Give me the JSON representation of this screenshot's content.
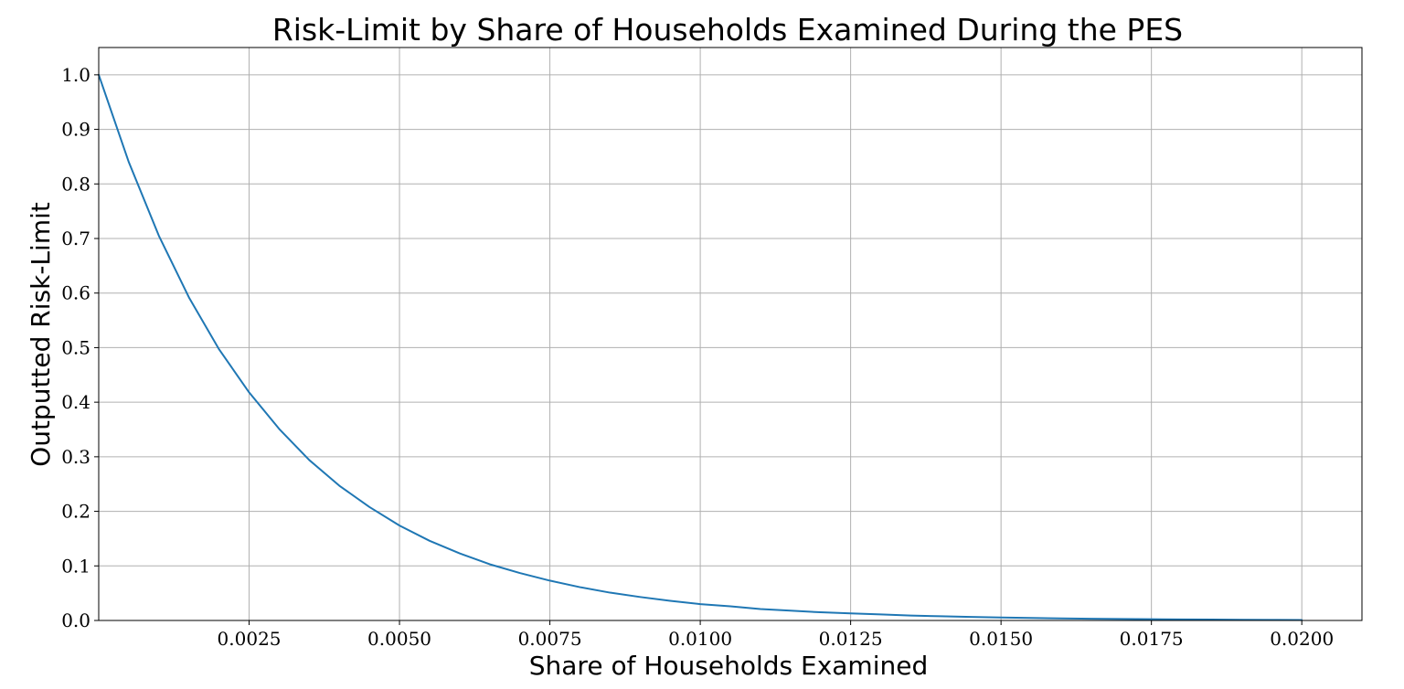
{
  "chart_data": {
    "type": "line",
    "title": "Risk-Limit by Share of Households Examined During the PES",
    "xlabel": "Share of Households Examined",
    "ylabel": "Outputted Risk-Limit",
    "xlim": [
      0.0,
      0.021
    ],
    "ylim": [
      0.0,
      1.05
    ],
    "x_ticks": [
      0.0025,
      0.005,
      0.0075,
      0.01,
      0.0125,
      0.015,
      0.0175,
      0.02
    ],
    "x_tick_labels": [
      "0.0025",
      "0.0050",
      "0.0075",
      "0.0100",
      "0.0125",
      "0.0150",
      "0.0175",
      "0.0200"
    ],
    "y_ticks": [
      0.0,
      0.1,
      0.2,
      0.3,
      0.4,
      0.5,
      0.6,
      0.7,
      0.8,
      0.9,
      1.0
    ],
    "y_tick_labels": [
      "0.0",
      "0.1",
      "0.2",
      "0.3",
      "0.4",
      "0.5",
      "0.6",
      "0.7",
      "0.8",
      "0.9",
      "1.0"
    ],
    "grid": true,
    "legend": "none",
    "series": [
      {
        "color": "#1f77b4",
        "x": [
          0.0,
          0.0005,
          0.001,
          0.0015,
          0.002,
          0.0025,
          0.003,
          0.0035,
          0.004,
          0.0045,
          0.005,
          0.0055,
          0.006,
          0.0065,
          0.007,
          0.0075,
          0.008,
          0.0085,
          0.009,
          0.0095,
          0.01,
          0.0105,
          0.011,
          0.0115,
          0.012,
          0.0125,
          0.013,
          0.0135,
          0.014,
          0.0145,
          0.015,
          0.0155,
          0.016,
          0.0165,
          0.017,
          0.0175,
          0.018,
          0.0185,
          0.019,
          0.0195,
          0.02
        ],
        "y": [
          1.0,
          0.84,
          0.705,
          0.592,
          0.497,
          0.418,
          0.351,
          0.294,
          0.247,
          0.208,
          0.174,
          0.146,
          0.123,
          0.103,
          0.087,
          0.073,
          0.061,
          0.051,
          0.043,
          0.036,
          0.03,
          0.026,
          0.021,
          0.018,
          0.015,
          0.013,
          0.011,
          0.009,
          0.0077,
          0.0065,
          0.0054,
          0.0046,
          0.0038,
          0.0032,
          0.0027,
          0.0023,
          0.0019,
          0.0016,
          0.0013,
          0.0011,
          0.0009
        ]
      }
    ]
  }
}
